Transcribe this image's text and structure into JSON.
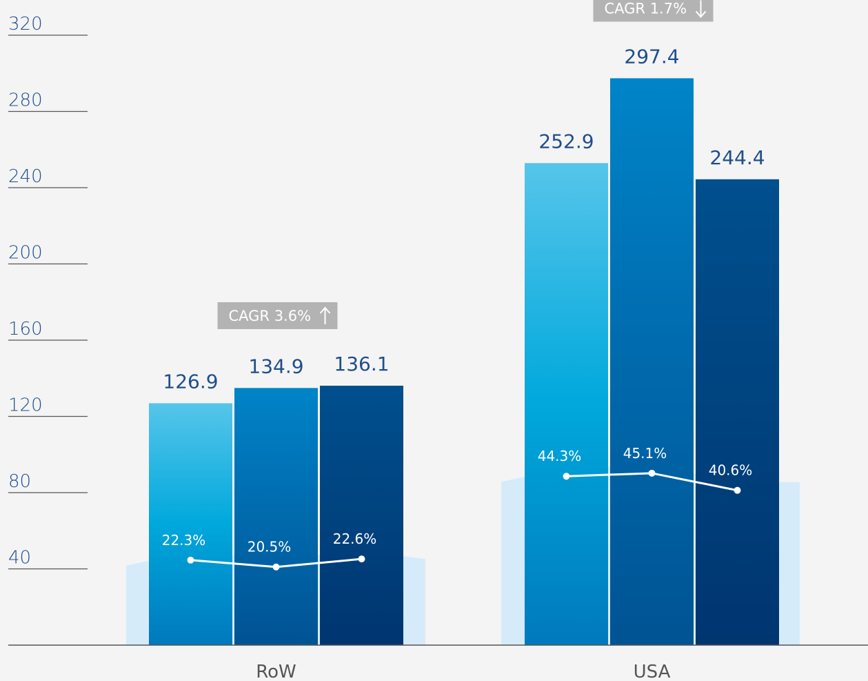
{
  "chart_data": {
    "type": "bar",
    "categories": [
      "RoW",
      "USA"
    ],
    "series": [
      {
        "values": [
          126.9,
          252.9
        ],
        "color_top": "#56c5ea",
        "color_mid": "#00a8dc",
        "color_bottom": "#0079bd"
      },
      {
        "values": [
          134.9,
          297.4
        ],
        "color_top": "#0084c8",
        "color_mid": "#006aad",
        "color_bottom": "#005393"
      },
      {
        "values": [
          136.1,
          244.4
        ],
        "color_top": "#004f8e",
        "color_mid": "#00437f",
        "color_bottom": "#003570"
      }
    ],
    "share_percent": {
      "RoW": [
        22.3,
        20.5,
        22.6
      ],
      "USA": [
        44.3,
        45.1,
        40.6
      ],
      "labels": {
        "RoW": [
          "22.3%",
          "20.5%",
          "22.6%"
        ],
        "USA": [
          "44.3%",
          "45.1%",
          "40.6%"
        ]
      }
    },
    "value_labels": {
      "RoW": [
        "126.9",
        "134.9",
        "136.1"
      ],
      "USA": [
        "252.9",
        "297.4",
        "244.4"
      ]
    },
    "cagr": {
      "RoW": {
        "label": "CAGR 3.6%",
        "direction": "up",
        "arrow": "↑"
      },
      "USA": {
        "label": "CAGR 1.7%",
        "direction": "down",
        "arrow": "↓"
      }
    },
    "yticks": [
      40,
      80,
      120,
      160,
      200,
      240,
      280,
      320
    ],
    "ylim": [
      0,
      320
    ],
    "background_area_color": "#d6ebfa",
    "line_color": "#ffffff",
    "cagr_box_color": "#b3b3b3"
  }
}
